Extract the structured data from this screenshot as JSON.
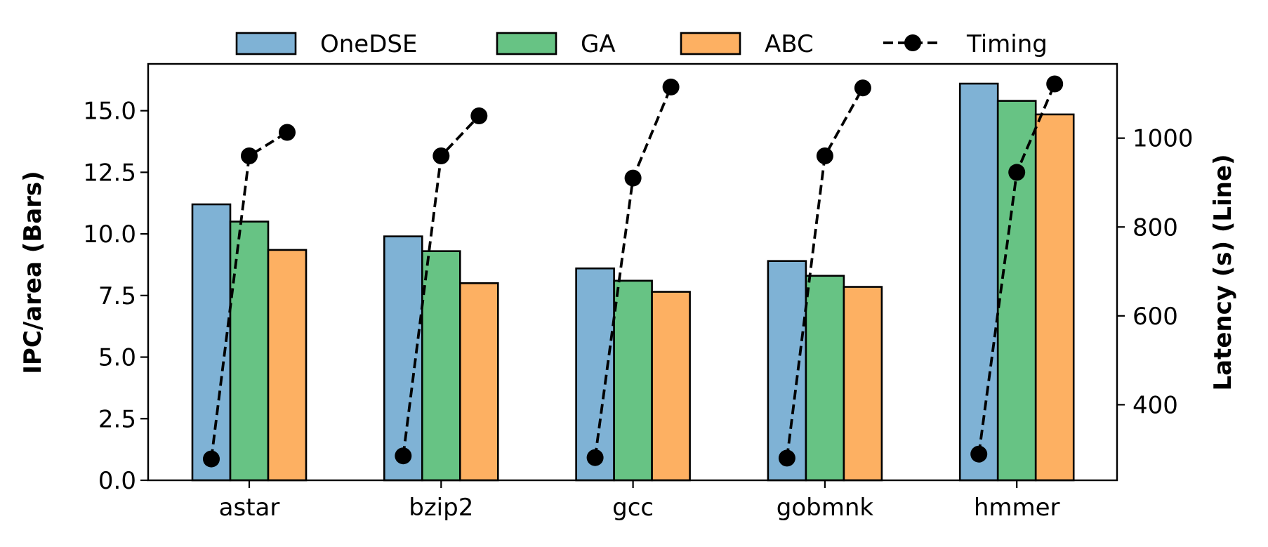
{
  "chart_data": {
    "type": "bar",
    "title": "",
    "xlabel": "",
    "ylabel": "IPC/area (Bars)",
    "y2label": "Latency (s) (Line)",
    "categories": [
      "astar",
      "bzip2",
      "gcc",
      "gobmnk",
      "hmmer"
    ],
    "ylim": [
      0,
      16.9
    ],
    "y2lim": [
      230,
      1167
    ],
    "yticks": [
      "0.0",
      "2.5",
      "5.0",
      "7.5",
      "10.0",
      "12.5",
      "15.0"
    ],
    "y2ticks": [
      "400",
      "600",
      "800",
      "1000"
    ],
    "grid": false,
    "legend_position": "top",
    "colors": {
      "OneDSE": "#7fb2d5",
      "GA": "#67c384",
      "ABC": "#fdb062",
      "Timing": "#000000",
      "edge": "#000000"
    },
    "series": [
      {
        "name": "OneDSE",
        "values": [
          11.2,
          9.9,
          8.6,
          8.9,
          16.1
        ]
      },
      {
        "name": "GA",
        "values": [
          10.5,
          9.3,
          8.1,
          8.3,
          15.4
        ]
      },
      {
        "name": "ABC",
        "values": [
          9.35,
          8.0,
          7.65,
          7.85,
          14.85
        ]
      }
    ],
    "line_series": {
      "name": "Timing",
      "axis": "right",
      "points": [
        {
          "category": "astar",
          "values": [
            278,
            960,
            1013
          ]
        },
        {
          "category": "bzip2",
          "values": [
            285,
            960,
            1050
          ]
        },
        {
          "category": "gcc",
          "values": [
            281,
            910,
            1115
          ]
        },
        {
          "category": "gobmnk",
          "values": [
            280,
            960,
            1113
          ]
        },
        {
          "category": "hmmer",
          "values": [
            289,
            923,
            1122
          ]
        }
      ]
    },
    "legend": [
      "OneDSE",
      "GA",
      "ABC",
      "Timing"
    ]
  }
}
